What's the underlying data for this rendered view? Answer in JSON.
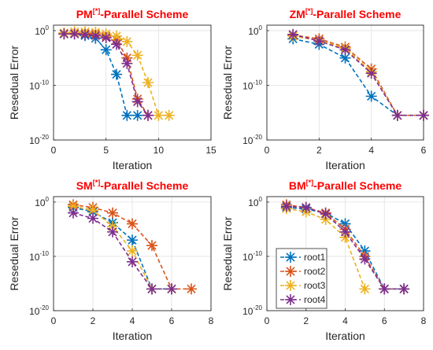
{
  "chart_data": [
    {
      "type": "line",
      "title_prefix": "PM",
      "title_superscript": "[*]",
      "title_suffix": "-Parallel Scheme",
      "xlabel": "Iteration",
      "ylabel": "Resedual Error",
      "xlim": [
        0,
        15
      ],
      "xticks": [
        "0",
        "5",
        "10",
        "15"
      ],
      "ylim_exponent": [
        -20,
        1
      ],
      "yscale": "log",
      "yticks": [
        {
          "base": "10",
          "exp": "0"
        },
        {
          "base": "10",
          "exp": "-10"
        },
        {
          "base": "10",
          "exp": "-20"
        }
      ],
      "grid": true,
      "series": [
        {
          "x": [
            1,
            2,
            3,
            4,
            5,
            6,
            7,
            8
          ],
          "y_exp": [
            -0.6,
            -0.6,
            -0.9,
            -1.4,
            -3.5,
            -8.0,
            -15.5,
            -15.5
          ]
        },
        {
          "x": [
            1,
            2,
            3,
            4,
            5,
            6,
            7,
            8,
            9
          ],
          "y_exp": [
            -0.6,
            -0.5,
            -0.5,
            -0.6,
            -1.0,
            -1.7,
            -5.0,
            -12.5,
            -15.5
          ]
        },
        {
          "x": [
            1,
            2,
            3,
            4,
            5,
            6,
            7,
            8,
            9,
            10,
            11
          ],
          "y_exp": [
            -0.4,
            -0.2,
            -0.2,
            -0.3,
            -0.6,
            -1.0,
            -2.0,
            -4.5,
            -9.5,
            -15.5,
            -15.5
          ]
        },
        {
          "x": [
            1,
            2,
            3,
            4,
            5,
            6,
            7,
            8,
            9
          ],
          "y_exp": [
            -0.6,
            -0.6,
            -0.7,
            -0.9,
            -1.3,
            -2.5,
            -6.0,
            -13.0,
            -15.5
          ]
        }
      ]
    },
    {
      "type": "line",
      "title_prefix": "ZM",
      "title_superscript": "[*]",
      "title_suffix": "-Parallel Scheme",
      "xlabel": "Iteration",
      "ylabel": "Resedual Error",
      "xlim": [
        0,
        6
      ],
      "xticks": [
        "0",
        "2",
        "4",
        "6"
      ],
      "ylim_exponent": [
        -20,
        1
      ],
      "yscale": "log",
      "yticks": [
        {
          "base": "10",
          "exp": "0"
        },
        {
          "base": "10",
          "exp": "-10"
        },
        {
          "base": "10",
          "exp": "-20"
        }
      ],
      "grid": true,
      "series": [
        {
          "x": [
            1,
            2,
            3,
            4,
            5,
            6
          ],
          "y_exp": [
            -1.5,
            -2.5,
            -5.0,
            -12.0,
            -15.5,
            -15.5
          ]
        },
        {
          "x": [
            1,
            2,
            3,
            4,
            5,
            6
          ],
          "y_exp": [
            -0.8,
            -1.5,
            -3.0,
            -7.0,
            -15.5,
            -15.5
          ]
        },
        {
          "x": [
            1,
            2,
            3,
            4,
            5,
            6
          ],
          "y_exp": [
            -1.0,
            -1.8,
            -3.2,
            -7.5,
            -15.5,
            -15.5
          ]
        },
        {
          "x": [
            1,
            2,
            3,
            4,
            5,
            6
          ],
          "y_exp": [
            -0.7,
            -1.9,
            -3.5,
            -7.8,
            -15.5,
            -15.5
          ]
        }
      ]
    },
    {
      "type": "line",
      "title_prefix": "SM",
      "title_superscript": "[*]",
      "title_suffix": "-Parallel Scheme",
      "xlabel": "Iteration",
      "ylabel": "Resedual Error",
      "xlim": [
        0,
        8
      ],
      "xticks": [
        "0",
        "2",
        "4",
        "6",
        "8"
      ],
      "ylim_exponent": [
        -20,
        1
      ],
      "yscale": "log",
      "yticks": [
        {
          "base": "10",
          "exp": "0"
        },
        {
          "base": "10",
          "exp": "-10"
        },
        {
          "base": "10",
          "exp": "-20"
        }
      ],
      "grid": true,
      "series": [
        {
          "x": [
            1,
            2,
            3,
            4,
            5,
            6
          ],
          "y_exp": [
            -1.0,
            -1.8,
            -3.8,
            -7.0,
            -16.0,
            -16.0
          ]
        },
        {
          "x": [
            1,
            2,
            3,
            4,
            5,
            6,
            7
          ],
          "y_exp": [
            -0.5,
            -1.0,
            -2.0,
            -4.0,
            -8.0,
            -16.0,
            -16.0
          ]
        },
        {
          "x": [
            1,
            2,
            3,
            4,
            5,
            6
          ],
          "y_exp": [
            -0.8,
            -1.5,
            -4.5,
            -9.0,
            -16.0,
            -16.0
          ]
        },
        {
          "x": [
            1,
            2,
            3,
            4,
            5,
            6
          ],
          "y_exp": [
            -2.0,
            -3.0,
            -5.5,
            -11.0,
            -16.0,
            -16.0
          ]
        }
      ]
    },
    {
      "type": "line",
      "title_prefix": "BM",
      "title_superscript": "[*]",
      "title_suffix": "-Parallel Scheme",
      "xlabel": "Iteration",
      "ylabel": "Resedual Error",
      "xlim": [
        0,
        8
      ],
      "xticks": [
        "0",
        "2",
        "4",
        "6",
        "8"
      ],
      "ylim_exponent": [
        -20,
        1
      ],
      "yscale": "log",
      "yticks": [
        {
          "base": "10",
          "exp": "0"
        },
        {
          "base": "10",
          "exp": "-10"
        },
        {
          "base": "10",
          "exp": "-20"
        }
      ],
      "grid": true,
      "legend": {
        "placement": "bottom-left",
        "entries": [
          "root1",
          "root2",
          "root3",
          "root4"
        ]
      },
      "series": [
        {
          "name": "root1",
          "x": [
            1,
            2,
            3,
            4,
            5,
            6,
            7
          ],
          "y_exp": [
            -1.0,
            -1.3,
            -2.0,
            -4.0,
            -9.0,
            -16.0,
            -16.0
          ]
        },
        {
          "name": "root2",
          "x": [
            1,
            2,
            3,
            4,
            5,
            6,
            7
          ],
          "y_exp": [
            -0.5,
            -1.0,
            -2.0,
            -5.0,
            -10.0,
            -16.0,
            -16.0
          ]
        },
        {
          "name": "root3",
          "x": [
            1,
            2,
            3,
            4,
            5
          ],
          "y_exp": [
            -1.2,
            -1.8,
            -3.2,
            -6.5,
            -16.0
          ]
        },
        {
          "name": "root4",
          "x": [
            1,
            2,
            3,
            4,
            5,
            6,
            7
          ],
          "y_exp": [
            -0.8,
            -1.0,
            -2.2,
            -5.5,
            -10.5,
            -16.0,
            -16.0
          ]
        }
      ]
    }
  ],
  "colors": {
    "series": [
      "#0072BD",
      "#D95319",
      "#EDB120",
      "#7E2F8E"
    ],
    "title": "#ff0000"
  }
}
